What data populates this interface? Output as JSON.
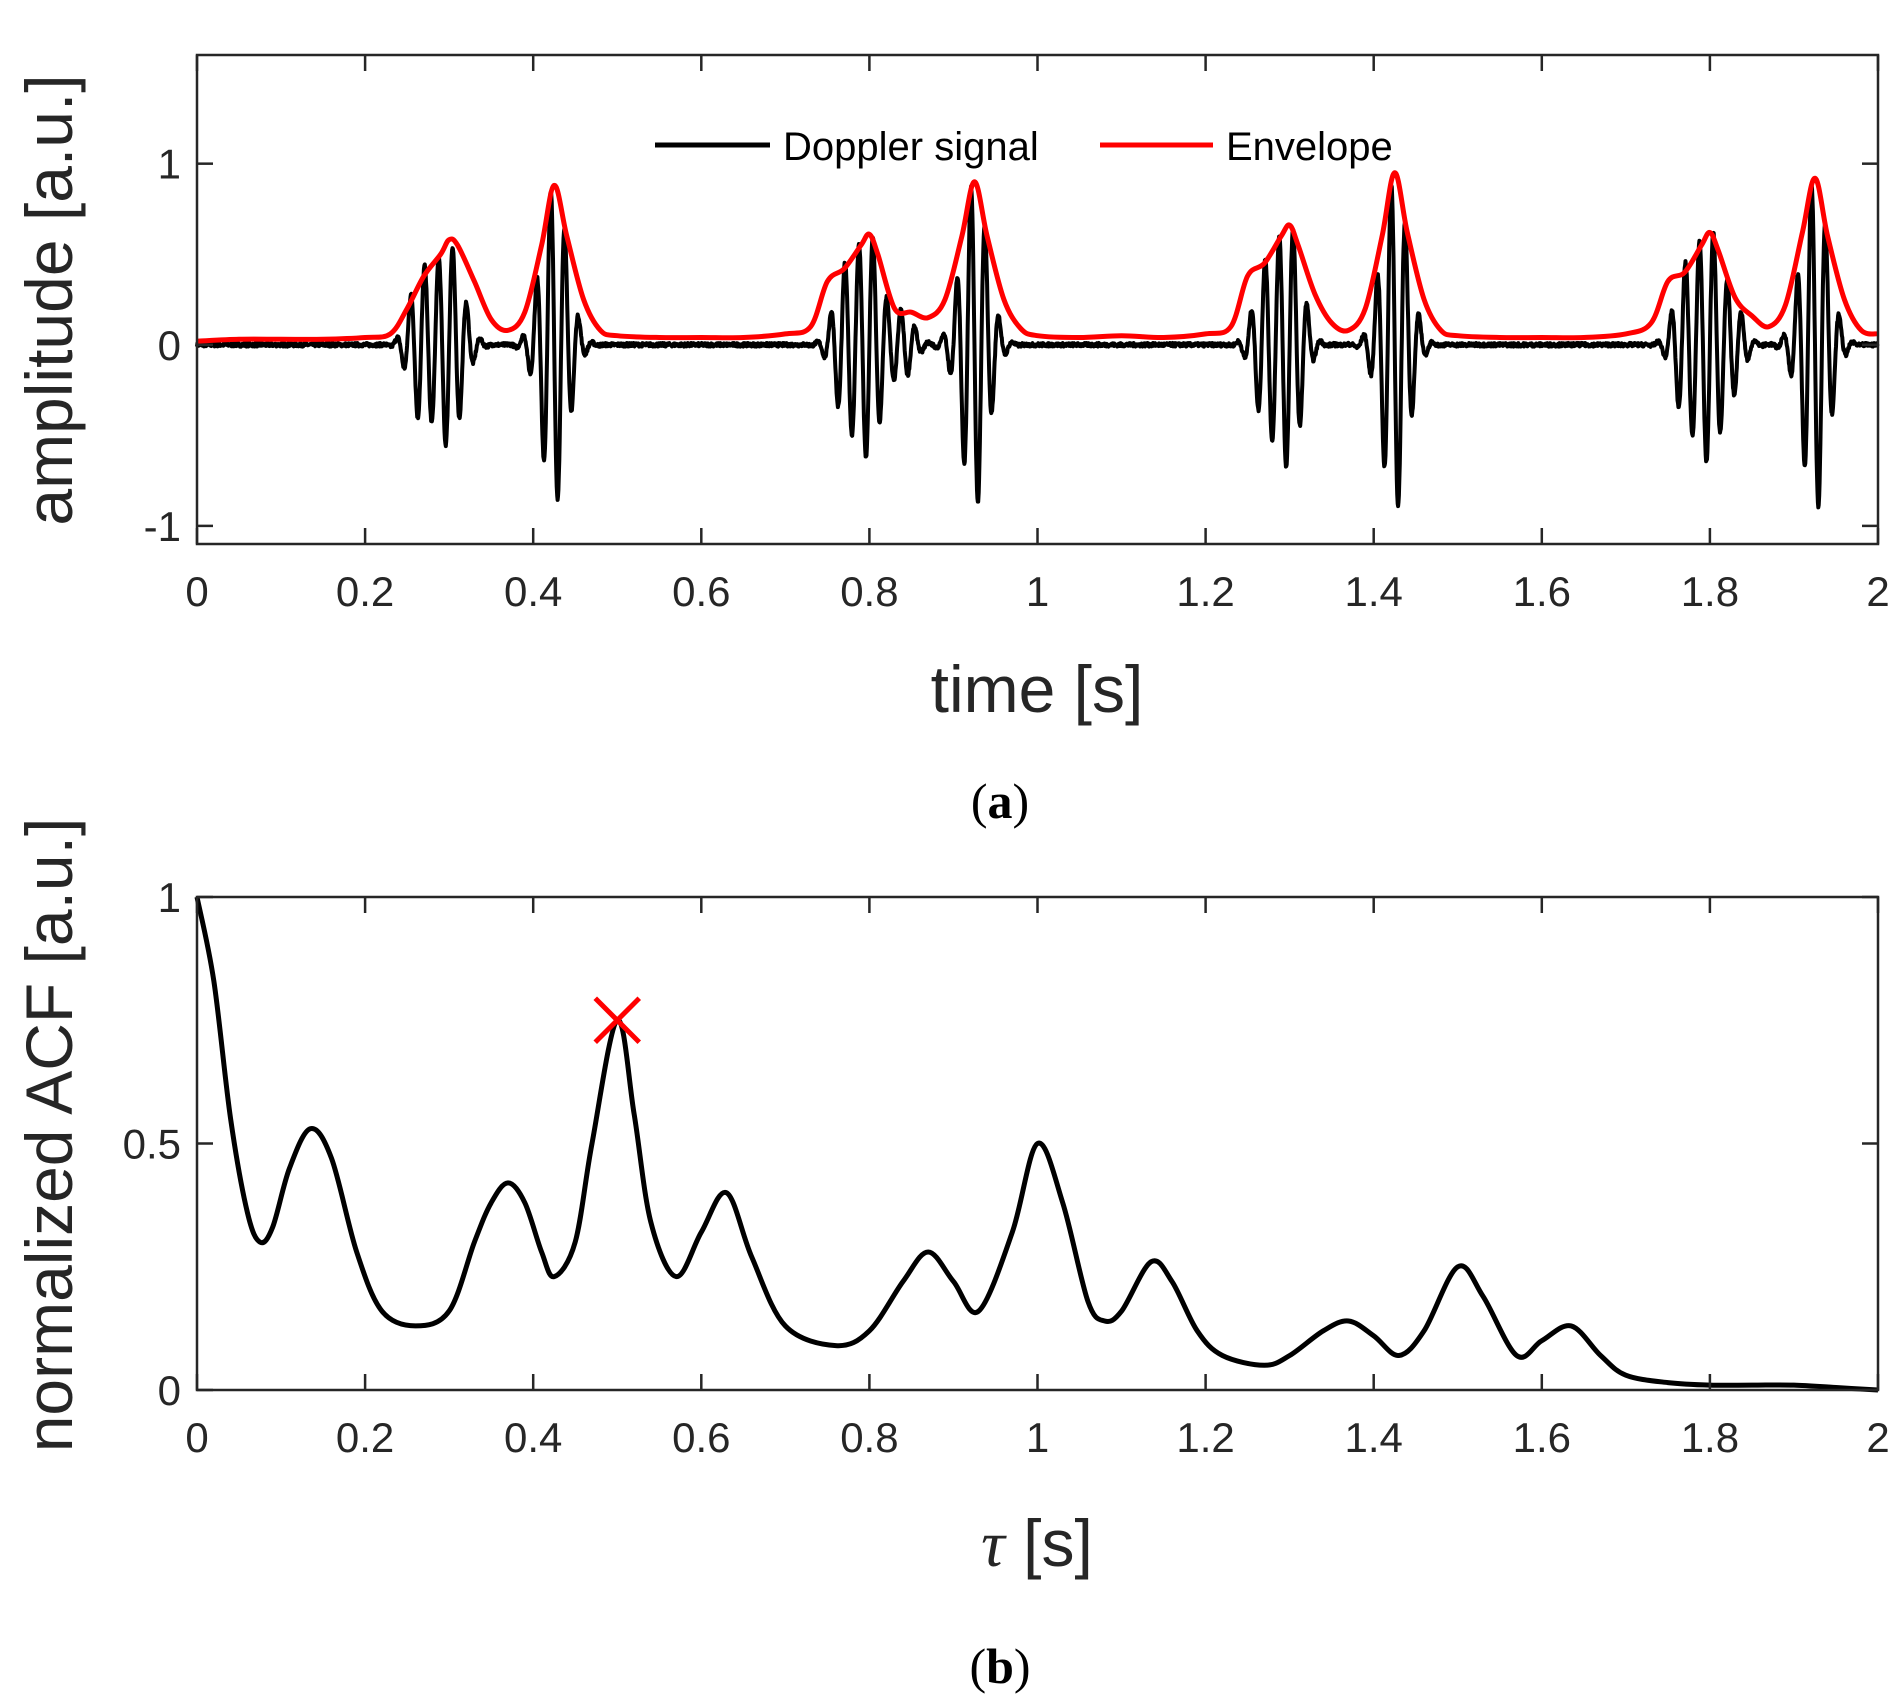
{
  "chart_data": [
    {
      "type": "line",
      "id": "a",
      "caption_prefix": "(",
      "caption_letter": "a",
      "caption_suffix": ")",
      "xlabel": "time [s]",
      "ylabel": "amplitude [a.u.]",
      "xlim": [
        0,
        2
      ],
      "ylim": [
        -1.1,
        1.6
      ],
      "xticks": [
        0,
        0.2,
        0.4,
        0.6,
        0.8,
        1,
        1.2,
        1.4,
        1.6,
        1.8,
        2
      ],
      "xtick_labels": [
        "0",
        "0.2",
        "0.4",
        "0.6",
        "0.8",
        "1",
        "1.2",
        "1.4",
        "1.6",
        "1.8",
        "2"
      ],
      "yticks": [
        -1,
        0,
        1
      ],
      "ytick_labels": [
        "-1",
        "0",
        "1"
      ],
      "legend_position": "top-center",
      "series": [
        {
          "name": "Doppler signal",
          "color": "#000000",
          "carrier_hz": 60,
          "noise_amplitude": 0.02,
          "bursts": [
            {
              "t": 0.265,
              "amp": 0.38,
              "width": 0.018
            },
            {
              "t": 0.3,
              "amp": 0.55,
              "width": 0.022
            },
            {
              "t": 0.425,
              "amp": 0.88,
              "width": 0.022
            },
            {
              "t": 0.77,
              "amp": 0.38,
              "width": 0.018
            },
            {
              "t": 0.8,
              "amp": 0.6,
              "width": 0.02
            },
            {
              "t": 0.84,
              "amp": 0.18,
              "width": 0.018
            },
            {
              "t": 0.925,
              "amp": 0.9,
              "width": 0.022
            },
            {
              "t": 1.27,
              "amp": 0.4,
              "width": 0.018
            },
            {
              "t": 1.3,
              "amp": 0.65,
              "width": 0.02
            },
            {
              "t": 1.425,
              "amp": 0.92,
              "width": 0.022
            },
            {
              "t": 1.77,
              "amp": 0.38,
              "width": 0.018
            },
            {
              "t": 1.8,
              "amp": 0.62,
              "width": 0.02
            },
            {
              "t": 1.83,
              "amp": 0.2,
              "width": 0.016
            },
            {
              "t": 1.925,
              "amp": 0.92,
              "width": 0.022
            }
          ]
        },
        {
          "name": "Envelope",
          "color": "#ff0000",
          "x": [
            0,
            0.05,
            0.1,
            0.15,
            0.2,
            0.23,
            0.25,
            0.27,
            0.29,
            0.3,
            0.31,
            0.33,
            0.35,
            0.37,
            0.39,
            0.41,
            0.425,
            0.44,
            0.46,
            0.48,
            0.5,
            0.55,
            0.6,
            0.65,
            0.7,
            0.73,
            0.75,
            0.77,
            0.79,
            0.8,
            0.81,
            0.83,
            0.85,
            0.87,
            0.89,
            0.91,
            0.925,
            0.94,
            0.96,
            0.98,
            1.0,
            1.05,
            1.1,
            1.15,
            1.2,
            1.23,
            1.25,
            1.27,
            1.29,
            1.3,
            1.31,
            1.33,
            1.35,
            1.37,
            1.39,
            1.41,
            1.425,
            1.44,
            1.46,
            1.48,
            1.5,
            1.55,
            1.6,
            1.65,
            1.7,
            1.73,
            1.75,
            1.77,
            1.79,
            1.8,
            1.81,
            1.83,
            1.85,
            1.87,
            1.89,
            1.91,
            1.925,
            1.94,
            1.96,
            1.98,
            2.0
          ],
          "y": [
            0.02,
            0.03,
            0.03,
            0.03,
            0.04,
            0.06,
            0.2,
            0.38,
            0.5,
            0.58,
            0.55,
            0.35,
            0.14,
            0.08,
            0.18,
            0.55,
            0.88,
            0.6,
            0.25,
            0.08,
            0.05,
            0.04,
            0.04,
            0.04,
            0.06,
            0.1,
            0.35,
            0.42,
            0.55,
            0.61,
            0.5,
            0.2,
            0.18,
            0.15,
            0.25,
            0.6,
            0.9,
            0.6,
            0.25,
            0.09,
            0.05,
            0.04,
            0.05,
            0.04,
            0.06,
            0.1,
            0.38,
            0.45,
            0.6,
            0.66,
            0.55,
            0.28,
            0.12,
            0.08,
            0.2,
            0.6,
            0.95,
            0.62,
            0.25,
            0.08,
            0.05,
            0.04,
            0.04,
            0.04,
            0.06,
            0.12,
            0.35,
            0.4,
            0.55,
            0.62,
            0.52,
            0.26,
            0.16,
            0.1,
            0.22,
            0.62,
            0.92,
            0.6,
            0.25,
            0.08,
            0.06
          ]
        }
      ]
    },
    {
      "type": "line",
      "id": "b",
      "caption_prefix": "(",
      "caption_letter": "b",
      "caption_suffix": ")",
      "xlabel_symbol": "τ",
      "xlabel_rest": " [s]",
      "ylabel": "normalized ACF [a.u.]",
      "xlim": [
        0,
        2
      ],
      "ylim": [
        0,
        1
      ],
      "xticks": [
        0,
        0.2,
        0.4,
        0.6,
        0.8,
        1,
        1.2,
        1.4,
        1.6,
        1.8,
        2
      ],
      "xtick_labels": [
        "0",
        "0.2",
        "0.4",
        "0.6",
        "0.8",
        "1",
        "1.2",
        "1.4",
        "1.6",
        "1.8",
        "2"
      ],
      "yticks": [
        0,
        0.5,
        1
      ],
      "ytick_labels": [
        "0",
        "0.5",
        "1"
      ],
      "series": [
        {
          "name": "normalized ACF",
          "color": "#000000",
          "x": [
            0,
            0.02,
            0.04,
            0.06,
            0.075,
            0.09,
            0.11,
            0.135,
            0.16,
            0.19,
            0.22,
            0.26,
            0.3,
            0.33,
            0.35,
            0.37,
            0.39,
            0.41,
            0.425,
            0.45,
            0.47,
            0.5,
            0.52,
            0.54,
            0.57,
            0.6,
            0.63,
            0.66,
            0.7,
            0.76,
            0.8,
            0.84,
            0.87,
            0.9,
            0.93,
            0.97,
            1.0,
            1.03,
            1.06,
            1.08,
            1.1,
            1.135,
            1.16,
            1.19,
            1.22,
            1.27,
            1.3,
            1.34,
            1.37,
            1.4,
            1.43,
            1.46,
            1.5,
            1.53,
            1.57,
            1.6,
            1.635,
            1.67,
            1.7,
            1.75,
            1.8,
            1.85,
            1.9,
            1.95,
            2.0
          ],
          "y": [
            1.0,
            0.83,
            0.55,
            0.36,
            0.3,
            0.33,
            0.45,
            0.53,
            0.47,
            0.28,
            0.16,
            0.13,
            0.16,
            0.3,
            0.38,
            0.42,
            0.38,
            0.28,
            0.23,
            0.3,
            0.5,
            0.75,
            0.56,
            0.34,
            0.23,
            0.32,
            0.4,
            0.27,
            0.13,
            0.09,
            0.12,
            0.22,
            0.28,
            0.22,
            0.16,
            0.32,
            0.5,
            0.38,
            0.18,
            0.14,
            0.16,
            0.26,
            0.22,
            0.12,
            0.07,
            0.05,
            0.07,
            0.12,
            0.14,
            0.11,
            0.07,
            0.12,
            0.25,
            0.19,
            0.07,
            0.1,
            0.13,
            0.07,
            0.03,
            0.015,
            0.01,
            0.01,
            0.01,
            0.005,
            0.0
          ]
        }
      ],
      "marker": {
        "x": 0.5,
        "y": 0.75,
        "symbol": "x",
        "color": "#ff0000"
      }
    }
  ]
}
